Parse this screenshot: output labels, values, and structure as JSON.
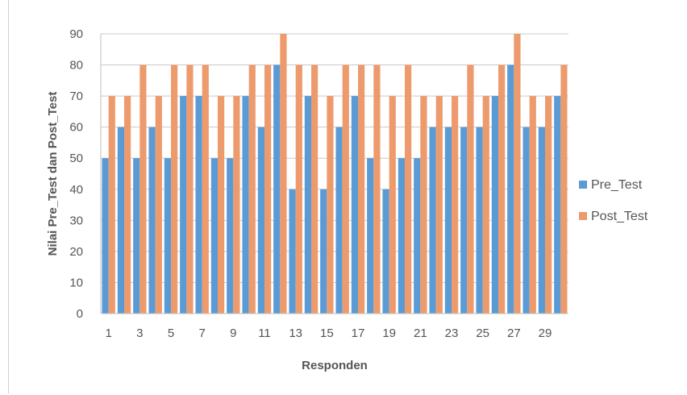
{
  "chart_data": {
    "type": "bar",
    "xlabel": "Responden",
    "ylabel": "Nilai Pre_Test dan Post_Test",
    "ylim": [
      0,
      90
    ],
    "yticks": [
      0,
      10,
      20,
      30,
      40,
      50,
      60,
      70,
      80,
      90
    ],
    "grid": true,
    "legend_position": "right",
    "categories": [
      1,
      2,
      3,
      4,
      5,
      6,
      7,
      8,
      9,
      10,
      11,
      12,
      13,
      14,
      15,
      16,
      17,
      18,
      19,
      20,
      21,
      22,
      23,
      24,
      25,
      26,
      27,
      28,
      29,
      30
    ],
    "xtick_labels": [
      "1",
      "3",
      "5",
      "7",
      "9",
      "11",
      "13",
      "15",
      "17",
      "19",
      "21",
      "23",
      "25",
      "27",
      "29"
    ],
    "series": [
      {
        "name": "Pre_Test",
        "color": "#5b9bd5",
        "values": [
          50,
          60,
          50,
          60,
          50,
          70,
          70,
          50,
          50,
          70,
          60,
          80,
          40,
          70,
          40,
          60,
          70,
          50,
          40,
          50,
          50,
          60,
          60,
          60,
          60,
          70,
          80,
          60,
          60,
          70
        ]
      },
      {
        "name": "Post_Test",
        "color": "#ed9b6d",
        "values": [
          70,
          70,
          80,
          70,
          80,
          80,
          80,
          70,
          70,
          80,
          80,
          90,
          80,
          80,
          70,
          80,
          80,
          80,
          70,
          80,
          70,
          70,
          70,
          80,
          70,
          80,
          90,
          70,
          70,
          80
        ]
      }
    ]
  }
}
